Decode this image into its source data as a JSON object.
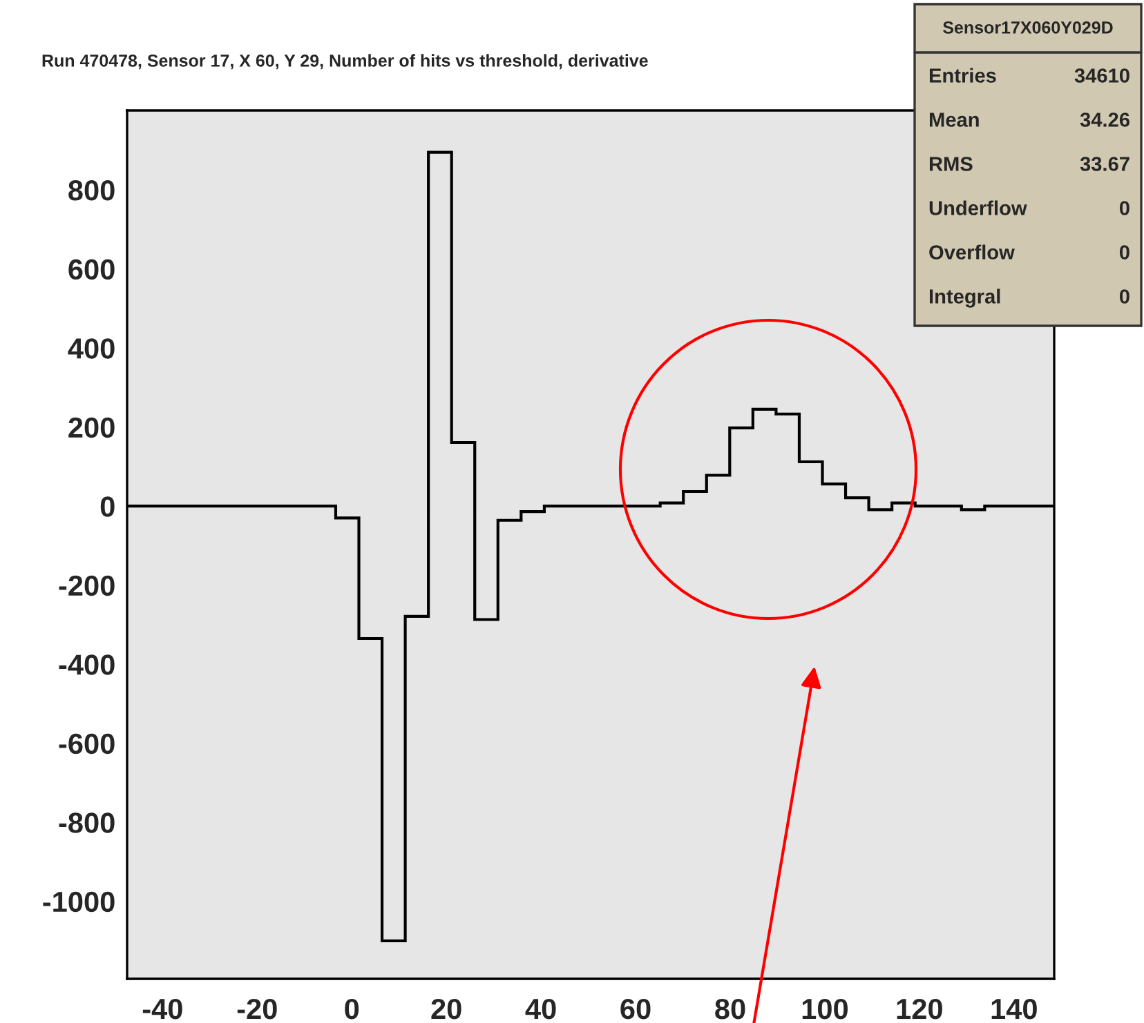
{
  "chart_data": {
    "type": "histogram",
    "title": "Run 470478, Sensor 17, X 60, Y 29, Number of hits vs threshold, derivative",
    "bins": [
      -47.5,
      -42.6,
      -37.7,
      -32.8,
      -27.9,
      -23.0,
      -18.1,
      -13.2,
      -8.3,
      -3.4,
      1.5,
      6.4,
      11.3,
      16.2,
      21.1,
      26.0,
      30.9,
      35.8,
      40.7,
      45.6,
      50.5,
      55.4,
      60.3,
      65.2,
      70.1,
      75.0,
      79.9,
      84.8,
      89.7,
      94.6,
      99.5,
      104.4,
      109.3,
      114.2,
      119.1,
      124.0,
      128.9,
      133.8,
      138.7,
      143.6,
      148.5
    ],
    "values": [
      0,
      0,
      0,
      0,
      0,
      0,
      0,
      0,
      0,
      -30,
      -335,
      -1100,
      -279,
      895,
      161,
      -287,
      -36,
      -14,
      0,
      0,
      0,
      0,
      0,
      8,
      37,
      78,
      198,
      245,
      233,
      112,
      56,
      21,
      -9,
      8,
      0,
      0,
      -9,
      0,
      0,
      0
    ],
    "color": "#000000",
    "xlim": [
      -47.5,
      148.5
    ],
    "xticks": [
      -40,
      -20,
      0,
      20,
      40,
      60,
      80,
      100,
      120,
      140
    ],
    "ylim": [
      -1196,
      1001
    ],
    "yticks": [
      -1000,
      -800,
      -600,
      -400,
      -200,
      0,
      200,
      400,
      600,
      800
    ],
    "grid": false,
    "annotations": [
      "Sensor17X060Y029D",
      "Entries 34610",
      "Mean 34.26",
      "RMS 33.67",
      "Underflow 0",
      "Overflow 0",
      "Integral 0"
    ]
  }
}
